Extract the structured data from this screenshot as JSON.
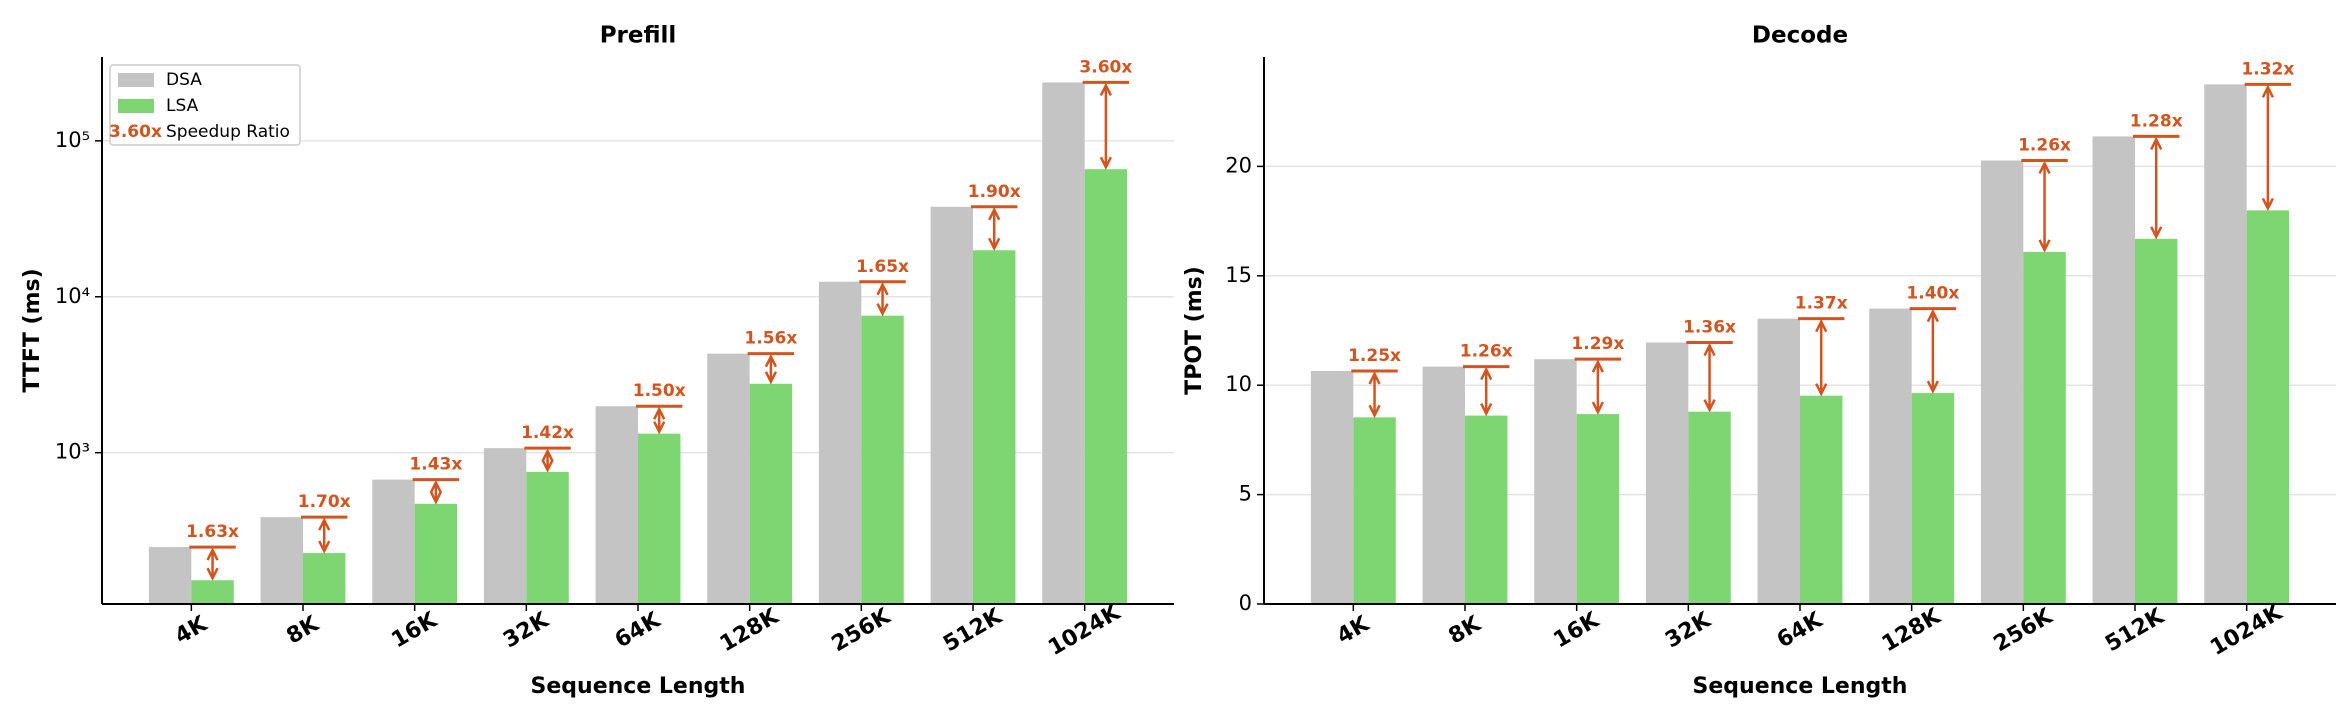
{
  "chart_data": [
    {
      "type": "bar",
      "title": "Prefill",
      "x_label": "Sequence Length",
      "y_label": "TTFT (ms)",
      "categories": [
        "4K",
        "8K",
        "16K",
        "32K",
        "64K",
        "128K",
        "256K",
        "512K",
        "1024K"
      ],
      "series": [
        {
          "name": "DSA",
          "color": "#c4c4c4",
          "values": [
            248,
            386,
            672,
            1069,
            1986,
            4315,
            12480,
            37760,
            237000
          ]
        },
        {
          "name": "LSA",
          "color": "#7ed672",
          "values": [
            152,
            227,
            470,
            753,
            1324,
            2766,
            7564,
            19870,
            65800
          ]
        }
      ],
      "speedup": {
        "name": "Speedup Ratio",
        "color": "#d4541f",
        "values": [
          1.63,
          1.7,
          1.43,
          1.42,
          1.5,
          1.56,
          1.65,
          1.9,
          3.6
        ],
        "value_labels": [
          "1.63x",
          "1.70x",
          "1.43x",
          "1.42x",
          "1.50x",
          "1.56x",
          "1.65x",
          "1.90x",
          "3.60x"
        ]
      },
      "ylim": [
        107,
        345000
      ],
      "log_scale": true,
      "yticks": [
        {
          "value": 1000,
          "label": "10³"
        },
        {
          "value": 10000,
          "label": "10⁴"
        },
        {
          "value": 100000,
          "label": "10⁵"
        }
      ],
      "grid": true,
      "legend": "upper left"
    },
    {
      "type": "bar",
      "title": "Decode",
      "x_label": "Sequence Length",
      "y_label": "TPOT (ms)",
      "categories": [
        "4K",
        "8K",
        "16K",
        "32K",
        "64K",
        "128K",
        "256K",
        "512K",
        "1024K"
      ],
      "series": [
        {
          "name": "DSA",
          "color": "#c4c4c4",
          "values": [
            10.65,
            10.85,
            11.19,
            11.95,
            13.04,
            13.5,
            20.27,
            21.37,
            23.75
          ]
        },
        {
          "name": "LSA",
          "color": "#7ed672",
          "values": [
            8.53,
            8.61,
            8.68,
            8.79,
            9.52,
            9.64,
            16.09,
            16.69,
            17.99
          ]
        }
      ],
      "speedup": {
        "name": "Speedup Ratio",
        "color": "#d4541f",
        "values": [
          1.25,
          1.26,
          1.29,
          1.36,
          1.37,
          1.4,
          1.26,
          1.28,
          1.32
        ],
        "value_labels": [
          "1.25x",
          "1.26x",
          "1.29x",
          "1.36x",
          "1.37x",
          "1.40x",
          "1.26x",
          "1.28x",
          "1.32x"
        ]
      },
      "ylim": [
        0,
        25
      ],
      "log_scale": false,
      "yticks": [
        0,
        5,
        10,
        15,
        20
      ],
      "grid": true
    }
  ]
}
